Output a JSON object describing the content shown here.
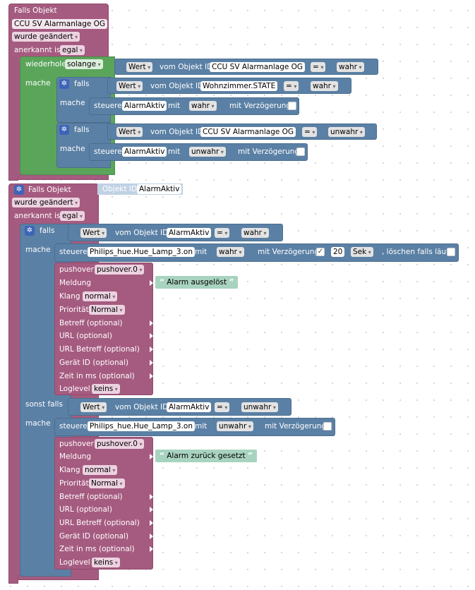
{
  "block1": {
    "title": "Falls Objekt",
    "object_id": "CCU SV Alarmanlage OG",
    "trigger": "wurde geändert",
    "ack_label": "anerkannt ist",
    "ack_value": "egal",
    "while_label": "wiederhole",
    "while_mode": "solange",
    "do_label": "mache",
    "cond1": {
      "value_label": "Wert",
      "from_label": "vom Objekt ID",
      "object": "CCU SV Alarmanlage OG",
      "op": "=",
      "val": "wahr"
    },
    "if1": {
      "if_label": "falls",
      "cond": {
        "value_label": "Wert",
        "from_label": "vom Objekt ID",
        "object": "Wohnzimmer.STATE",
        "op": "=",
        "val": "wahr"
      },
      "do_label": "mache",
      "control": {
        "label": "steuere",
        "object": "AlarmAktiv",
        "with_label": "mit",
        "val": "wahr",
        "delay_label": "mit Verzögerung"
      }
    },
    "if2": {
      "if_label": "falls",
      "cond": {
        "value_label": "Wert",
        "from_label": "vom Objekt ID",
        "object": "CCU SV Alarmanlage OG",
        "op": "=",
        "val": "unwahr"
      },
      "do_label": "mache",
      "control": {
        "label": "steuere",
        "object": "AlarmAktiv",
        "with_label": "mit",
        "val": "unwahr",
        "delay_label": "mit Verzögerung"
      }
    }
  },
  "block2": {
    "title": "Falls Objekt",
    "object_chip": "Objekt ID",
    "object_id": "AlarmAktiv",
    "trigger": "wurde geändert",
    "ack_label": "anerkannt ist",
    "ack_value": "egal",
    "if_label": "falls",
    "do_label": "mache",
    "else_if_label": "sonst falls",
    "do2_label": "mache",
    "cond1": {
      "value_label": "Wert",
      "from_label": "vom Objekt ID",
      "object": "AlarmAktiv",
      "op": "=",
      "val": "wahr"
    },
    "control1": {
      "label": "steuere",
      "object": "Philips_hue.Hue_Lamp_3.on",
      "with_label": "mit",
      "val": "wahr",
      "delay_label": "mit Verzögerung",
      "delay_checked": "✓",
      "delay": "20",
      "unit": "Sek",
      "clear_label": ", löschen falls läuft"
    },
    "pushover1": {
      "label": "pushover",
      "instance": "pushover.0",
      "message_label": "Meldung",
      "message": "Alarm ausgelöst",
      "sound_label": "Klang",
      "sound": "normal",
      "priority_label": "Priorität",
      "priority": "Normal",
      "subject": "Betreff (optional)",
      "url": "URL (optional)",
      "url_title": "URL Betreff (optional)",
      "device": "Gerät ID (optional)",
      "time": "Zeit in ms (optional)",
      "loglevel_label": "Loglevel",
      "loglevel": "keins"
    },
    "cond2": {
      "value_label": "Wert",
      "from_label": "vom Objekt ID",
      "object": "AlarmAktiv",
      "op": "=",
      "val": "unwahr"
    },
    "control2": {
      "label": "steuere",
      "object": "Philips_hue.Hue_Lamp_3.on",
      "with_label": "mit",
      "val": "unwahr",
      "delay_label": "mit Verzögerung"
    },
    "pushover2": {
      "label": "pushover",
      "instance": "pushover.0",
      "message_label": "Meldung",
      "message": "Alarm zurück gesetzt",
      "sound_label": "Klang",
      "sound": "normal",
      "priority_label": "Priorität",
      "priority": "Normal",
      "subject": "Betreff (optional)",
      "url": "URL (optional)",
      "url_title": "URL Betreff (optional)",
      "device": "Gerät ID (optional)",
      "time": "Zeit in ms (optional)",
      "loglevel_label": "Loglevel",
      "loglevel": "keins"
    }
  }
}
